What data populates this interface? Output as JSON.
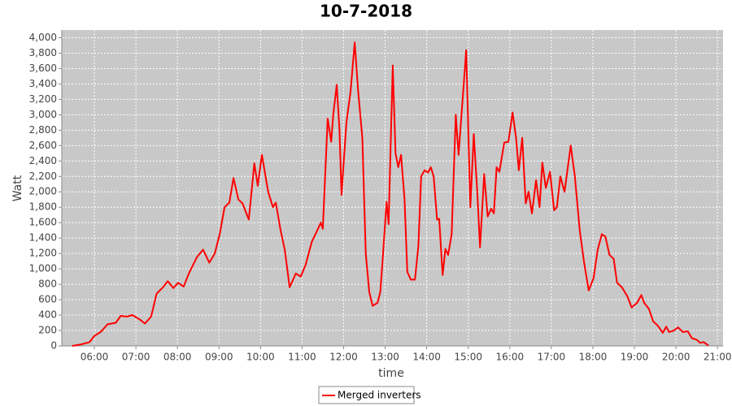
{
  "chart_data": {
    "type": "line",
    "title": "10-7-2018",
    "x_label": "time",
    "y_label": "Watt",
    "x": [
      "05:28",
      "05:41",
      "05:53",
      "06:00",
      "06:09",
      "06:19",
      "06:31",
      "06:38",
      "06:47",
      "06:55",
      "07:06",
      "07:13",
      "07:22",
      "07:30",
      "07:39",
      "07:46",
      "07:54",
      "08:01",
      "08:09",
      "08:17",
      "08:28",
      "08:37",
      "08:46",
      "08:54",
      "09:01",
      "09:08",
      "09:15",
      "09:21",
      "09:28",
      "09:34",
      "09:43",
      "09:51",
      "09:56",
      "10:02",
      "10:11",
      "10:18",
      "10:22",
      "10:29",
      "10:35",
      "10:42",
      "10:51",
      "10:58",
      "11:05",
      "11:14",
      "11:22",
      "11:27",
      "11:30",
      "11:37",
      "11:42",
      "11:45",
      "11:50",
      "11:54",
      "11:57",
      "12:04",
      "12:10",
      "12:16",
      "12:21",
      "12:27",
      "12:32",
      "12:37",
      "12:42",
      "12:49",
      "12:53",
      "12:57",
      "13:02",
      "13:05",
      "13:11",
      "13:15",
      "13:19",
      "13:23",
      "13:28",
      "13:32",
      "13:37",
      "13:43",
      "13:48",
      "13:52",
      "13:57",
      "14:02",
      "14:06",
      "14:10",
      "14:15",
      "14:18",
      "14:23",
      "14:27",
      "14:31",
      "14:36",
      "14:42",
      "14:46",
      "14:51",
      "14:57",
      "15:03",
      "15:08",
      "15:13",
      "15:17",
      "15:23",
      "15:28",
      "15:33",
      "15:37",
      "15:41",
      "15:45",
      "15:52",
      "15:58",
      "16:04",
      "16:09",
      "16:13",
      "16:18",
      "16:23",
      "16:27",
      "16:32",
      "16:38",
      "16:43",
      "16:47",
      "16:52",
      "16:58",
      "17:04",
      "17:08",
      "17:13",
      "17:19",
      "17:28",
      "17:34",
      "17:41",
      "17:47",
      "17:54",
      "18:01",
      "18:07",
      "18:13",
      "18:18",
      "18:24",
      "18:30",
      "18:35",
      "18:42",
      "18:50",
      "18:56",
      "19:04",
      "19:10",
      "19:14",
      "19:21",
      "19:27",
      "19:34",
      "19:41",
      "19:46",
      "19:50",
      "19:57",
      "20:03",
      "20:10",
      "20:17",
      "20:23",
      "20:30",
      "20:35",
      "20:40",
      "20:47"
    ],
    "series": [
      {
        "name": "Merged inverters",
        "color": "#ff0000",
        "values": [
          0,
          20,
          50,
          130,
          180,
          280,
          300,
          390,
          380,
          400,
          340,
          290,
          380,
          680,
          760,
          840,
          750,
          820,
          770,
          950,
          1150,
          1250,
          1080,
          1200,
          1450,
          1800,
          1860,
          2180,
          1900,
          1850,
          1640,
          2370,
          2080,
          2480,
          2000,
          1800,
          1860,
          1500,
          1250,
          760,
          940,
          900,
          1050,
          1350,
          1500,
          1600,
          1520,
          2950,
          2650,
          3000,
          3390,
          2800,
          1960,
          2900,
          3300,
          3940,
          3300,
          2700,
          1200,
          700,
          520,
          560,
          700,
          1200,
          1870,
          1580,
          3640,
          2500,
          2320,
          2480,
          1900,
          960,
          860,
          860,
          1300,
          2200,
          2280,
          2250,
          2320,
          2200,
          1640,
          1650,
          920,
          1260,
          1180,
          1450,
          3000,
          2480,
          3100,
          3840,
          1800,
          2750,
          2000,
          1280,
          2230,
          1680,
          1780,
          1720,
          2320,
          2260,
          2640,
          2650,
          3030,
          2700,
          2280,
          2700,
          1850,
          2000,
          1720,
          2150,
          1800,
          2380,
          2050,
          2260,
          1760,
          1800,
          2200,
          2000,
          2600,
          2200,
          1500,
          1100,
          720,
          880,
          1250,
          1450,
          1420,
          1180,
          1130,
          820,
          760,
          640,
          500,
          560,
          660,
          560,
          480,
          320,
          260,
          170,
          250,
          180,
          200,
          240,
          180,
          190,
          100,
          80,
          40,
          50,
          5
        ]
      }
    ],
    "xlim": [
      "05:13",
      "21:08"
    ],
    "xticks": [
      "06:00",
      "07:00",
      "08:00",
      "09:00",
      "10:00",
      "11:00",
      "12:00",
      "13:00",
      "14:00",
      "15:00",
      "16:00",
      "17:00",
      "18:00",
      "19:00",
      "20:00",
      "21:00"
    ],
    "ylim": [
      0,
      4100
    ],
    "yticks": [
      0,
      200,
      400,
      600,
      800,
      {
        "value": 1000,
        "label": "1,000"
      },
      {
        "value": 1200,
        "label": "1,200"
      },
      {
        "value": 1400,
        "label": "1,400"
      },
      {
        "value": 1600,
        "label": "1,600"
      },
      {
        "value": 1800,
        "label": "1,800"
      },
      {
        "value": 2000,
        "label": "2,000"
      },
      {
        "value": 2200,
        "label": "2,200"
      },
      {
        "value": 2400,
        "label": "2,400"
      },
      {
        "value": 2600,
        "label": "2,600"
      },
      {
        "value": 2800,
        "label": "2,800"
      },
      {
        "value": 3000,
        "label": "3,000"
      },
      {
        "value": 3200,
        "label": "3,200"
      },
      {
        "value": 3400,
        "label": "3,400"
      },
      {
        "value": 3600,
        "label": "3,600"
      },
      {
        "value": 3800,
        "label": "3,800"
      },
      {
        "value": 4000,
        "label": "4,000"
      }
    ],
    "grid": true,
    "legend": "bottom",
    "plot_background": "#c8c8c8"
  }
}
